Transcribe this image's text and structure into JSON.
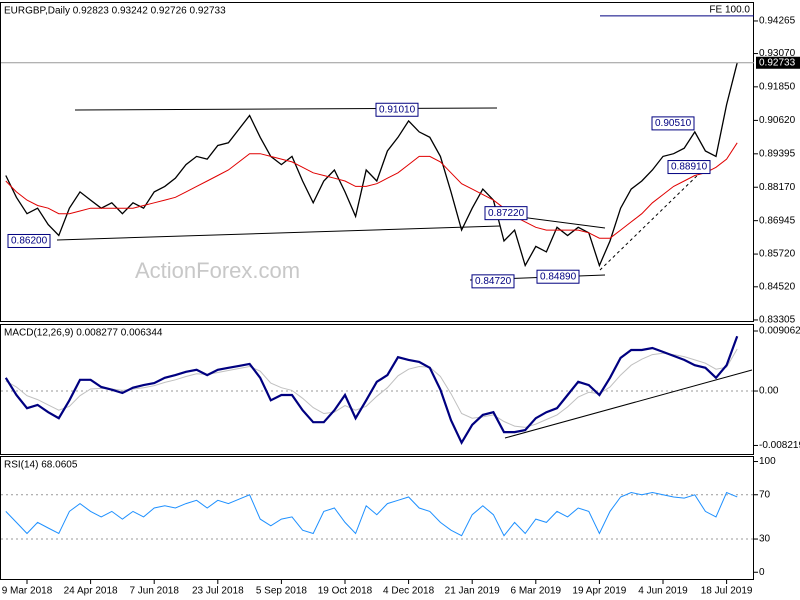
{
  "chart_data": [
    {
      "type": "line",
      "title": "EURGBP,Daily  0.92823 0.93242 0.92726 0.92733",
      "watermark": "ActionForex.com",
      "ylim": [
        0.8323,
        0.9496
      ],
      "yticks": [
        0.94265,
        {
          "value": 0.9307,
          "label": "0.93070"
        },
        {
          "value": 0.9185,
          "label": "0.91850"
        },
        {
          "value": 0.9062,
          "label": "0.90620"
        },
        0.89395,
        {
          "value": 0.8817,
          "label": "0.88170"
        },
        0.86945,
        {
          "value": 0.8572,
          "label": "0.85720"
        },
        {
          "value": 0.8452,
          "label": "0.84520"
        },
        0.83305
      ],
      "last_price": 0.92733,
      "series": [
        {
          "color": "#000000",
          "values": [
            0.886,
            0.878,
            0.872,
            0.874,
            0.868,
            0.864,
            0.874,
            0.88,
            0.877,
            0.874,
            0.876,
            0.872,
            0.876,
            0.874,
            0.88,
            0.882,
            0.885,
            0.89,
            0.893,
            0.892,
            0.897,
            0.898,
            0.903,
            0.908,
            0.9,
            0.893,
            0.89,
            0.893,
            0.884,
            0.876,
            0.884,
            0.888,
            0.88,
            0.871,
            0.888,
            0.884,
            0.895,
            0.9,
            0.906,
            0.902,
            0.9,
            0.893,
            0.88,
            0.866,
            0.874,
            0.881,
            0.877,
            0.862,
            0.866,
            0.853,
            0.86,
            0.858,
            0.867,
            0.864,
            0.867,
            0.865,
            0.853,
            0.862,
            0.874,
            0.881,
            0.884,
            0.888,
            0.893,
            0.894,
            0.896,
            0.902,
            0.895,
            0.893,
            0.912,
            0.92733
          ]
        },
        {
          "color": "#e00000",
          "values": [
            0.884,
            0.88,
            0.877,
            0.875,
            0.874,
            0.872,
            0.872,
            0.873,
            0.874,
            0.874,
            0.874,
            0.874,
            0.874,
            0.875,
            0.876,
            0.877,
            0.878,
            0.88,
            0.882,
            0.884,
            0.886,
            0.888,
            0.891,
            0.894,
            0.894,
            0.893,
            0.892,
            0.891,
            0.889,
            0.887,
            0.886,
            0.885,
            0.884,
            0.882,
            0.882,
            0.883,
            0.885,
            0.887,
            0.89,
            0.893,
            0.893,
            0.891,
            0.887,
            0.883,
            0.881,
            0.879,
            0.877,
            0.874,
            0.871,
            0.869,
            0.867,
            0.866,
            0.866,
            0.866,
            0.866,
            0.865,
            0.863,
            0.863,
            0.866,
            0.869,
            0.872,
            0.876,
            0.879,
            0.882,
            0.884,
            0.886,
            0.887,
            0.889,
            0.892,
            0.898
          ]
        }
      ],
      "annotations": [
        {
          "value": 0.862,
          "label": "0.86200"
        },
        {
          "value": 0.9101,
          "label": "0.91010"
        },
        {
          "value": 0.8722,
          "label": "0.87220"
        },
        {
          "value": 0.8472,
          "label": "0.84720"
        },
        {
          "value": 0.8489,
          "label": "0.84890"
        },
        {
          "value": 0.9051,
          "label": "0.90510"
        },
        {
          "value": 0.8891,
          "label": "0.88910"
        },
        {
          "value": 0.9445,
          "label": "FE 100.0"
        }
      ]
    },
    {
      "type": "line",
      "title": "MACD(12,26,9) 0.008277 0.006344",
      "ylim": [
        -0.00966,
        0.01012
      ],
      "yticks": [
        0.009062,
        {
          "value": 0,
          "label": "0.00"
        },
        -0.008219
      ],
      "levels": [
        0
      ],
      "series": [
        {
          "color": "#c0c0c0",
          "values": [
            0.0015,
            0.0006,
            -0.0007,
            -0.0013,
            -0.0021,
            -0.0029,
            -0.0023,
            -0.0007,
            0.0003,
            0.0004,
            0.0003,
            0.0001,
            0.0003,
            0.0005,
            0.0008,
            0.0013,
            0.0017,
            0.0022,
            0.0026,
            0.0025,
            0.0028,
            0.0031,
            0.0034,
            0.0037,
            0.003,
            0.0012,
            0.0005,
            0.0001,
            -0.0011,
            -0.0025,
            -0.0034,
            -0.0032,
            -0.0022,
            -0.0029,
            -0.0023,
            -0.0008,
            0.0005,
            0.0023,
            0.0033,
            0.0037,
            0.0036,
            0.0022,
            -0.0004,
            -0.0034,
            -0.0041,
            -0.0039,
            -0.0036,
            -0.0046,
            -0.0053,
            -0.0055,
            -0.005,
            -0.0043,
            -0.0036,
            -0.0024,
            -0.0009,
            -0.0002,
            -0.0004,
            0.0006,
            0.0024,
            0.0039,
            0.0048,
            0.0055,
            0.0057,
            0.0055,
            0.0052,
            0.0047,
            0.0042,
            0.0033,
            0.0036,
            0.006344
          ]
        },
        {
          "color": "#000080",
          "values": [
            0.002,
            -0.0006,
            -0.0026,
            -0.0021,
            -0.0032,
            -0.0041,
            -0.0014,
            0.0017,
            0.0017,
            0.0006,
            0.0002,
            -0.0003,
            0.0005,
            0.0009,
            0.0012,
            0.002,
            0.0024,
            0.0029,
            0.0032,
            0.0024,
            0.0032,
            0.0035,
            0.0038,
            0.0041,
            0.002,
            -0.0014,
            -0.0006,
            -0.0006,
            -0.0029,
            -0.0047,
            -0.0047,
            -0.0029,
            -0.0006,
            -0.0041,
            -0.0014,
            0.0014,
            0.0024,
            0.0051,
            0.0047,
            0.0044,
            0.0035,
            0.0002,
            -0.0044,
            -0.0078,
            -0.0051,
            -0.0036,
            -0.0032,
            -0.0062,
            -0.0062,
            -0.0059,
            -0.0041,
            -0.0032,
            -0.0026,
            -0.0006,
            0.0014,
            0.0009,
            -0.0006,
            0.002,
            0.005,
            0.0062,
            0.0062,
            0.0065,
            0.0059,
            0.0053,
            0.0047,
            0.0039,
            0.0035,
            0.002,
            0.0039,
            0.008277
          ]
        }
      ]
    },
    {
      "type": "line",
      "title": "RSI(14) 68.0605",
      "ylim": [
        -7,
        105
      ],
      "yticks": [
        100,
        70,
        30,
        0
      ],
      "levels": [
        70,
        30
      ],
      "categories": [
        null,
        null,
        "9 Mar 2018",
        null,
        null,
        null,
        null,
        null,
        "24 Apr 2018",
        null,
        null,
        null,
        null,
        null,
        "7 Jun 2018",
        null,
        null,
        null,
        null,
        null,
        "23 Jul 2018",
        null,
        null,
        null,
        null,
        null,
        "5 Sep 2018",
        null,
        null,
        null,
        null,
        null,
        "19 Oct 2018",
        null,
        null,
        null,
        null,
        null,
        "4 Dec 2018",
        null,
        null,
        null,
        null,
        null,
        "21 Jan 2019",
        null,
        null,
        null,
        null,
        null,
        "6 Mar 2019",
        null,
        null,
        null,
        null,
        null,
        "19 Apr 2019",
        null,
        null,
        null,
        null,
        null,
        "4 Jun 2019",
        null,
        null,
        null,
        null,
        null,
        "18 Jul 2019",
        null
      ],
      "series": [
        {
          "color": "#1e90ff",
          "values": [
            55,
            45,
            35,
            45,
            40,
            35,
            55,
            62,
            55,
            50,
            55,
            48,
            55,
            50,
            58,
            60,
            58,
            62,
            65,
            58,
            65,
            62,
            66,
            70,
            48,
            42,
            48,
            50,
            38,
            35,
            55,
            58,
            45,
            35,
            60,
            52,
            62,
            65,
            68,
            58,
            55,
            45,
            38,
            33,
            52,
            60,
            52,
            33,
            45,
            35,
            48,
            45,
            55,
            50,
            58,
            55,
            35,
            55,
            68,
            72,
            70,
            72,
            70,
            68,
            67,
            70,
            55,
            50,
            72,
            68.0605
          ]
        }
      ]
    }
  ]
}
